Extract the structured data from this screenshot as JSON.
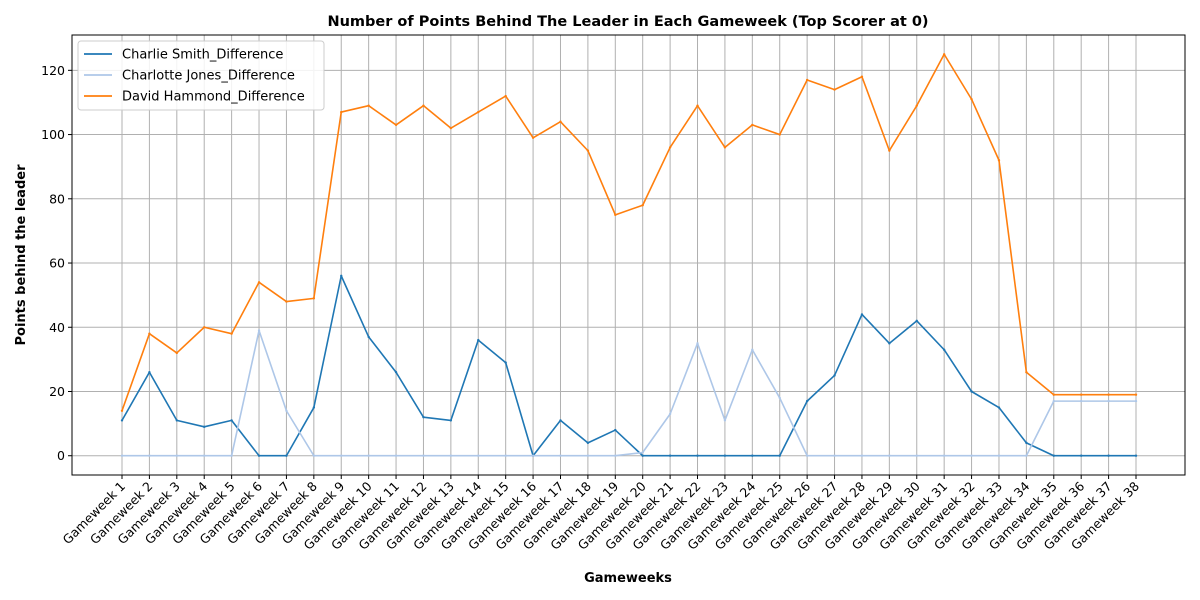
{
  "chart_data": {
    "type": "line",
    "title": "Number of Points Behind The Leader in Each Gameweek (Top Scorer at 0)",
    "xlabel": "Gameweeks",
    "ylabel": "Points behind the leader",
    "categories": [
      "Gameweek 1",
      "Gameweek 2",
      "Gameweek 3",
      "Gameweek 4",
      "Gameweek 5",
      "Gameweek 6",
      "Gameweek 7",
      "Gameweek 8",
      "Gameweek 9",
      "Gameweek 10",
      "Gameweek 11",
      "Gameweek 12",
      "Gameweek 13",
      "Gameweek 14",
      "Gameweek 15",
      "Gameweek 16",
      "Gameweek 17",
      "Gameweek 18",
      "Gameweek 19",
      "Gameweek 20",
      "Gameweek 21",
      "Gameweek 22",
      "Gameweek 23",
      "Gameweek 24",
      "Gameweek 25",
      "Gameweek 26",
      "Gameweek 27",
      "Gameweek 28",
      "Gameweek 29",
      "Gameweek 30",
      "Gameweek 31",
      "Gameweek 32",
      "Gameweek 33",
      "Gameweek 34",
      "Gameweek 35",
      "Gameweek 36",
      "Gameweek 37",
      "Gameweek 38"
    ],
    "ylim": [
      -6,
      131
    ],
    "yticks": [
      0,
      20,
      40,
      60,
      80,
      100,
      120
    ],
    "grid": true,
    "legend_position": "top-left",
    "series": [
      {
        "name": "Charlie Smith_Difference",
        "color": "#1f77b4",
        "values": [
          11,
          26,
          11,
          9,
          11,
          0,
          0,
          15,
          56,
          37,
          26,
          12,
          11,
          36,
          29,
          0,
          11,
          4,
          8,
          0,
          0,
          0,
          0,
          0,
          0,
          17,
          25,
          44,
          35,
          42,
          33,
          20,
          15,
          4,
          0,
          0,
          0,
          0
        ]
      },
      {
        "name": "Charlotte Jones_Difference",
        "color": "#aec7e8",
        "values": [
          0,
          0,
          0,
          0,
          0,
          39,
          14,
          0,
          0,
          0,
          0,
          0,
          0,
          0,
          0,
          0,
          0,
          0,
          0,
          1,
          13,
          35,
          11,
          33,
          18,
          0,
          0,
          0,
          0,
          0,
          0,
          0,
          0,
          0,
          17,
          17,
          17,
          17
        ]
      },
      {
        "name": "David Hammond_Difference",
        "color": "#ff7f0e",
        "values": [
          14,
          38,
          32,
          40,
          38,
          54,
          48,
          49,
          107,
          109,
          103,
          109,
          102,
          107,
          112,
          99,
          104,
          95,
          75,
          78,
          96,
          109,
          96,
          103,
          100,
          117,
          114,
          118,
          95,
          109,
          125,
          111,
          92,
          26,
          19,
          19,
          19,
          19
        ]
      }
    ]
  }
}
